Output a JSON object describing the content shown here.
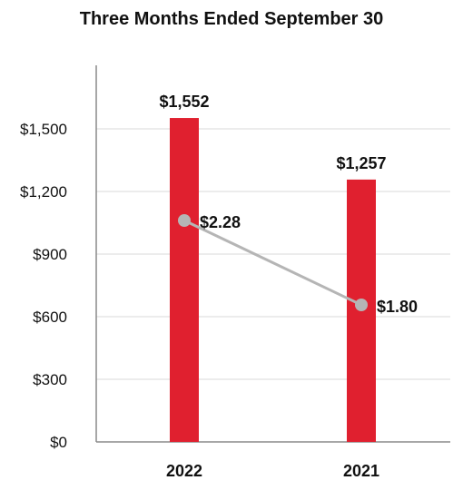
{
  "chart_data": {
    "type": "bar",
    "title": "Three Months Ended September 30",
    "categories": [
      "2022",
      "2021"
    ],
    "series": [
      {
        "type": "bar",
        "values": [
          1552,
          1257
        ],
        "value_labels": [
          "$1,552",
          "$1,257"
        ],
        "color": "#E0202F"
      },
      {
        "type": "line",
        "values": [
          2.28,
          1.8
        ],
        "value_labels": [
          "$2.28",
          "$1.80"
        ],
        "color": "#B5B5B5"
      }
    ],
    "y_axis": {
      "ticks": [
        0,
        300,
        600,
        900,
        1200,
        1500
      ],
      "tick_labels": [
        "$0",
        "$300",
        "$600",
        "$900",
        "$1,200",
        "$1,500"
      ],
      "ylim": [
        0,
        1750
      ]
    },
    "grid": true
  }
}
